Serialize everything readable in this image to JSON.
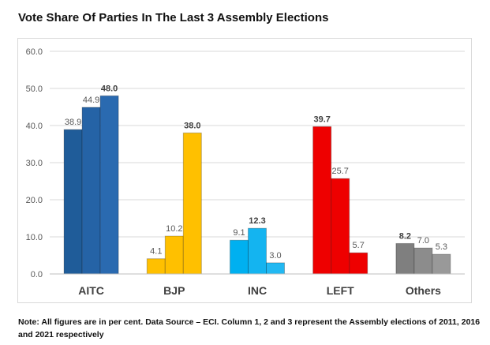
{
  "chart_data": {
    "type": "bar",
    "title": "Vote Share Of Parties In The Last 3 Assembly Elections",
    "categories": [
      "AITC",
      "BJP",
      "INC",
      "LEFT",
      "Others"
    ],
    "series_names": [
      "2011",
      "2016",
      "2021"
    ],
    "values": [
      [
        38.9,
        44.9,
        48.0
      ],
      [
        4.1,
        10.2,
        38.0
      ],
      [
        9.1,
        12.3,
        3.0
      ],
      [
        39.7,
        25.7,
        5.7
      ],
      [
        8.2,
        7.0,
        5.3
      ]
    ],
    "bold_labels": [
      [
        false,
        false,
        true
      ],
      [
        false,
        false,
        true
      ],
      [
        false,
        true,
        false
      ],
      [
        true,
        false,
        false
      ],
      [
        true,
        false,
        false
      ]
    ],
    "ylim": [
      0,
      60
    ],
    "yticks": [
      "0.0",
      "10.0",
      "20.0",
      "30.0",
      "40.0",
      "50.0",
      "60.0"
    ],
    "grid": true,
    "xlabel": "",
    "ylabel": "",
    "colors": {
      "AITC": [
        "#1f5c99",
        "#2563a6",
        "#2a6ab0"
      ],
      "BJP": [
        "#ffc000",
        "#ffc000",
        "#ffc000"
      ],
      "INC": [
        "#00b0f0",
        "#14b4f0",
        "#22b8f2"
      ],
      "LEFT": [
        "#ee0000",
        "#ee0000",
        "#ee0000"
      ],
      "Others": [
        "#7f7f7f",
        "#8c8c8c",
        "#999999"
      ]
    }
  },
  "note": "Note: All figures are in per cent. Data Source – ECI. Column 1, 2 and 3 represent the Assembly elections of 2011, 2016 and 2021 respectively"
}
